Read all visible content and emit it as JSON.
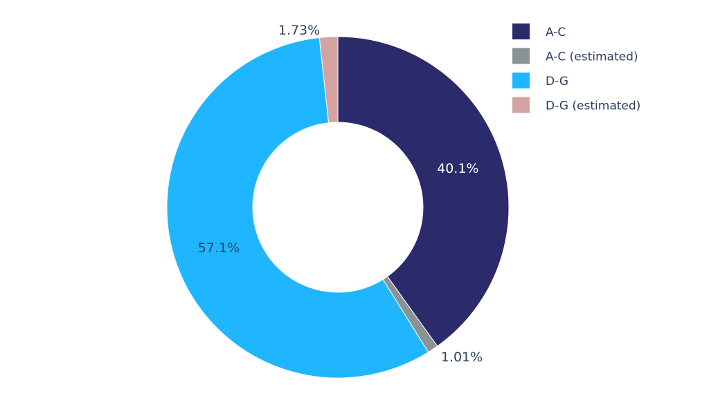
{
  "chart_data": {
    "type": "pie",
    "hole": true,
    "categories": [
      "A-C",
      "A-C (estimated)",
      "D-G",
      "D-G (estimated)"
    ],
    "values": [
      40.1,
      1.01,
      57.1,
      1.73
    ],
    "labels": [
      "40.1%",
      "1.01%",
      "57.1%",
      "1.73%"
    ],
    "colors": [
      "#2b2b6b",
      "#8a9296",
      "#1fb6ff",
      "#d4a3a0"
    ],
    "label_colors": [
      "#ffffff",
      "#2a3f5f",
      "#2a3f5f",
      "#2a3f5f"
    ],
    "label_positions": [
      "inside",
      "outside",
      "inside",
      "outside"
    ],
    "legend": {
      "placement": "top-right",
      "entries": [
        "A-C",
        "A-C (estimated)",
        "D-G",
        "D-G (estimated)"
      ]
    }
  }
}
